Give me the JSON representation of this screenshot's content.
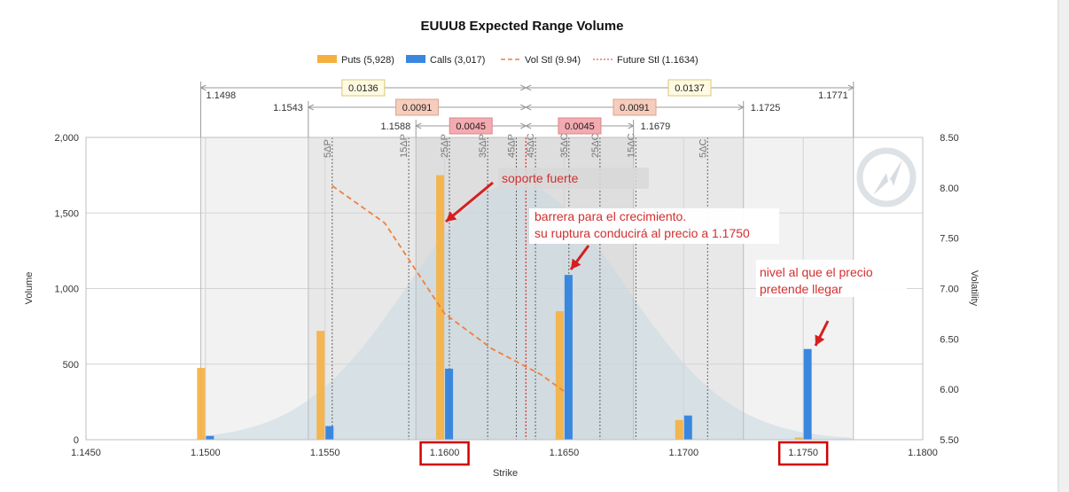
{
  "chart_data": {
    "type": "bar",
    "title": "EUUU8 Expected Range Volume",
    "xlabel": "Strike",
    "ylabel": "Volume",
    "y2label": "Volatility",
    "xlim": [
      1.145,
      1.18
    ],
    "ylim": [
      0,
      2000
    ],
    "y2lim": [
      5.5,
      8.5
    ],
    "x_ticks": [
      "1.1450",
      "1.1500",
      "1.1550",
      "1.1600",
      "1.1650",
      "1.1700",
      "1.1750",
      "1.1800"
    ],
    "y_ticks": [
      "0",
      "500",
      "1,000",
      "1,500",
      "2,000"
    ],
    "y2_ticks": [
      "5.50",
      "6.00",
      "6.50",
      "7.00",
      "7.50",
      "8.00",
      "8.50"
    ],
    "grid": true,
    "legend_position": "top-center",
    "series": [
      {
        "name": "Puts (5,928)",
        "kind": "bar",
        "color": "#f5b040",
        "points": [
          {
            "x": 1.15,
            "y": 475
          },
          {
            "x": 1.155,
            "y": 720
          },
          {
            "x": 1.16,
            "y": 1750
          },
          {
            "x": 1.165,
            "y": 850
          },
          {
            "x": 1.17,
            "y": 130
          },
          {
            "x": 1.175,
            "y": 15
          }
        ]
      },
      {
        "name": "Calls (3,017)",
        "kind": "bar",
        "color": "#3a87e0",
        "points": [
          {
            "x": 1.15,
            "y": 25
          },
          {
            "x": 1.155,
            "y": 90
          },
          {
            "x": 1.16,
            "y": 470
          },
          {
            "x": 1.165,
            "y": 1090
          },
          {
            "x": 1.17,
            "y": 160
          },
          {
            "x": 1.175,
            "y": 600
          }
        ]
      },
      {
        "name": "Vol Stl (9.94)",
        "kind": "line",
        "color": "#f08040",
        "points": [
          {
            "x": 1.1553,
            "y": 8.02
          },
          {
            "x": 1.1575,
            "y": 7.65
          },
          {
            "x": 1.16,
            "y": 6.75
          },
          {
            "x": 1.162,
            "y": 6.4
          },
          {
            "x": 1.164,
            "y": 6.15
          },
          {
            "x": 1.165,
            "y": 5.98
          }
        ]
      },
      {
        "name": "Future Stl (1.1634)",
        "kind": "vline",
        "color": "#d93030",
        "x": 1.1634
      }
    ],
    "distribution": {
      "mean": 1.163,
      "sd": 0.0045,
      "peak_volume": 1700,
      "color": "#c6d8e2"
    },
    "ranges": [
      {
        "low": "1.1498",
        "high": "1.1771",
        "low_x": 1.1498,
        "high_x": 1.1771,
        "width": "0.0136",
        "width_right": "0.0137"
      },
      {
        "low": "1.1543",
        "high": "1.1725",
        "low_x": 1.1543,
        "high_x": 1.1725,
        "width": "0.0091",
        "width_right": "0.0091"
      },
      {
        "low": "1.1588",
        "high": "1.1679",
        "low_x": 1.1588,
        "high_x": 1.1679,
        "width": "0.0045",
        "width_right": "0.0045"
      }
    ],
    "delta_lines": [
      {
        "label": "5ΔP",
        "x": 1.1553
      },
      {
        "label": "15ΔP",
        "x": 1.1585
      },
      {
        "label": "25ΔP",
        "x": 1.1602
      },
      {
        "label": "35ΔP",
        "x": 1.1618
      },
      {
        "label": "45ΔP",
        "x": 1.163
      },
      {
        "label": "45ΔC",
        "x": 1.1638
      },
      {
        "label": "35ΔC",
        "x": 1.1652
      },
      {
        "label": "25ΔC",
        "x": 1.1665
      },
      {
        "label": "15ΔC",
        "x": 1.168
      },
      {
        "label": "5ΔC",
        "x": 1.171
      }
    ],
    "annotations": [
      {
        "lines": [
          "soporte fuerte"
        ]
      },
      {
        "lines": [
          "barrera para el crecimiento.",
          "su ruptura conducirá al precio a 1.1750"
        ]
      },
      {
        "lines": [
          "nivel al que el precio",
          "pretende llegar"
        ]
      }
    ],
    "highlighted_ticks": [
      "1.1600",
      "1.1750"
    ]
  }
}
